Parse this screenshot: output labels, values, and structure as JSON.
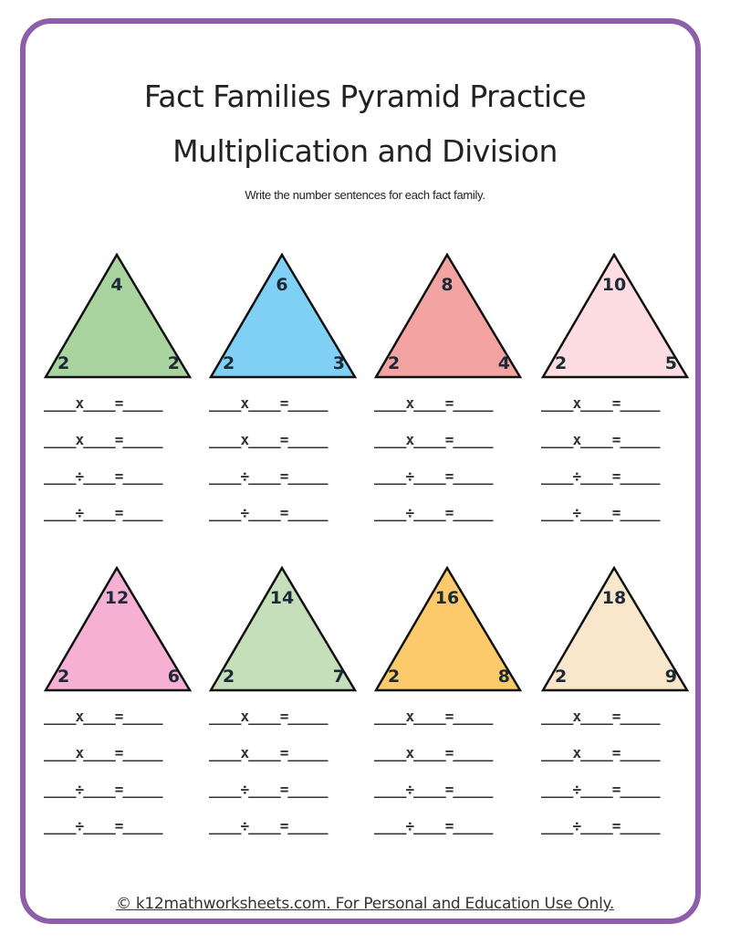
{
  "title_line1": "Fact Families Pyramid Practice",
  "title_line2": "Multiplication and Division",
  "instructions": "Write the number sentences for each fact family.",
  "sentence_templates": [
    "____x____=_____",
    "____x____=_____",
    "____÷____=_____",
    "____÷____=_____"
  ],
  "families": [
    {
      "top": "4",
      "left": "2",
      "right": "2",
      "color": "#a9d4a0"
    },
    {
      "top": "6",
      "left": "2",
      "right": "3",
      "color": "#80cff5"
    },
    {
      "top": "8",
      "left": "2",
      "right": "4",
      "color": "#f4a3a3"
    },
    {
      "top": "10",
      "left": "2",
      "right": "5",
      "color": "#fddde1"
    },
    {
      "top": "12",
      "left": "2",
      "right": "6",
      "color": "#f5b0d4"
    },
    {
      "top": "14",
      "left": "2",
      "right": "7",
      "color": "#c4dfba"
    },
    {
      "top": "16",
      "left": "2",
      "right": "8",
      "color": "#fdca6b"
    },
    {
      "top": "18",
      "left": "2",
      "right": "9",
      "color": "#f9e7cb"
    }
  ],
  "footer": "© k12mathworksheets.com. For Personal and Education Use Only.",
  "border_color": "#8e5ea8"
}
